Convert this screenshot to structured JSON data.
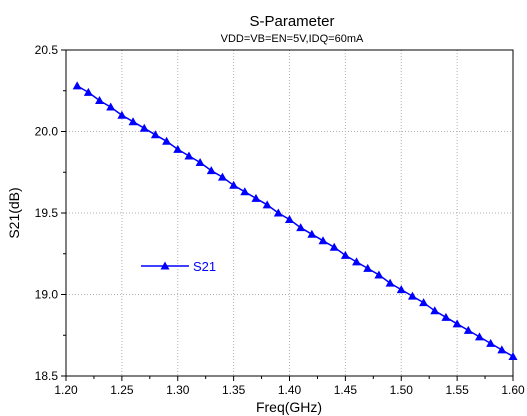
{
  "chart_data": {
    "type": "line",
    "title": "S-Parameter",
    "subtitle": "VDD=VB=EN=5V,IDQ=60mA",
    "xlabel": "Freq(GHz)",
    "ylabel": "S21(dB)",
    "xlim": [
      1.2,
      1.6
    ],
    "ylim": [
      18.5,
      20.5
    ],
    "xticks": [
      "1.20",
      "1.25",
      "1.30",
      "1.35",
      "1.40",
      "1.45",
      "1.50",
      "1.55",
      "1.60"
    ],
    "yticks": [
      "18.5",
      "19.0",
      "19.5",
      "20.0",
      "20.5"
    ],
    "grid": true,
    "legend_position": "middle-left",
    "series": [
      {
        "name": "S21",
        "color": "#0000ff",
        "marker": "triangle-up",
        "x": [
          1.21,
          1.22,
          1.23,
          1.24,
          1.25,
          1.26,
          1.27,
          1.28,
          1.29,
          1.3,
          1.31,
          1.32,
          1.33,
          1.34,
          1.35,
          1.36,
          1.37,
          1.38,
          1.39,
          1.4,
          1.41,
          1.42,
          1.43,
          1.44,
          1.45,
          1.46,
          1.47,
          1.48,
          1.49,
          1.5,
          1.51,
          1.52,
          1.53,
          1.54,
          1.55,
          1.56,
          1.57,
          1.58,
          1.59,
          1.6
        ],
        "y": [
          20.28,
          20.24,
          20.19,
          20.15,
          20.1,
          20.06,
          20.02,
          19.98,
          19.94,
          19.89,
          19.85,
          19.81,
          19.76,
          19.72,
          19.67,
          19.63,
          19.59,
          19.55,
          19.5,
          19.46,
          19.41,
          19.37,
          19.33,
          19.29,
          19.24,
          19.2,
          19.16,
          19.12,
          19.07,
          19.03,
          18.99,
          18.95,
          18.9,
          18.86,
          18.82,
          18.78,
          18.74,
          18.7,
          18.66,
          18.62
        ]
      }
    ]
  }
}
